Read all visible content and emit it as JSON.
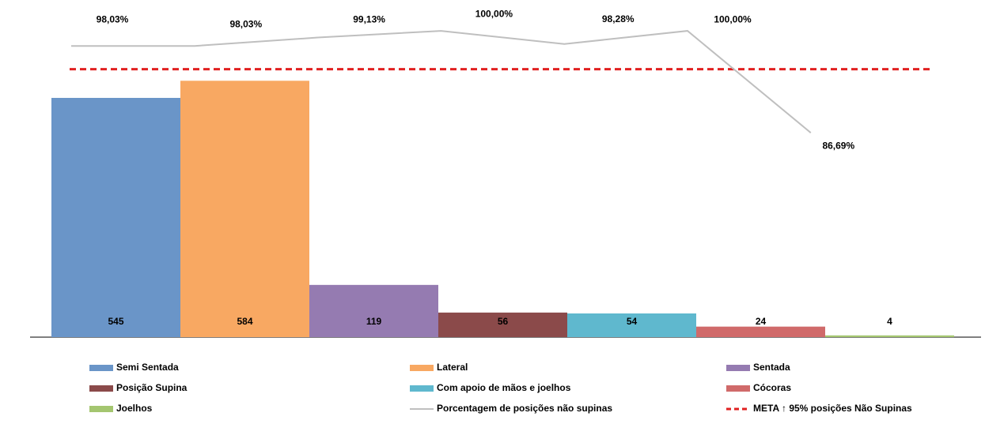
{
  "chart_data": {
    "type": "bar",
    "ylim": [
      0,
      750
    ],
    "y2lim": [
      60,
      103
    ],
    "series": [
      {
        "name": "Semi Sentada",
        "color": "#6a95c8",
        "values": [
          545
        ]
      },
      {
        "name": "Lateral",
        "color": "#f8a862",
        "values": [
          584
        ]
      },
      {
        "name": "Sentada",
        "color": "#957bb1",
        "values": [
          119
        ]
      },
      {
        "name": "Posição Supina",
        "color": "#8b4a4a",
        "values": [
          56
        ]
      },
      {
        "name": "Com apoio de mãos e joelhos",
        "color": "#5fb8ce",
        "values": [
          54
        ]
      },
      {
        "name": "Cócoras",
        "color": "#d06a6a",
        "values": [
          24
        ]
      },
      {
        "name": "Joelhos",
        "color": "#a4c670",
        "values": [
          4
        ]
      }
    ],
    "line": {
      "name": "Porcentagem de posições não supinas",
      "color": "#bfbfbf",
      "axis": "y2",
      "values": [
        98.03,
        98.03,
        99.13,
        100,
        98.28,
        100,
        86.69
      ],
      "value_labels": [
        "98,03%",
        "98,03%",
        "99,13%",
        "100,00%",
        "98,28%",
        "100,00%",
        "86,69%"
      ]
    },
    "target": {
      "name": "META ↑ 95% posições Não Supinas",
      "color": "#e02020",
      "axis": "y2",
      "value": 95
    }
  }
}
